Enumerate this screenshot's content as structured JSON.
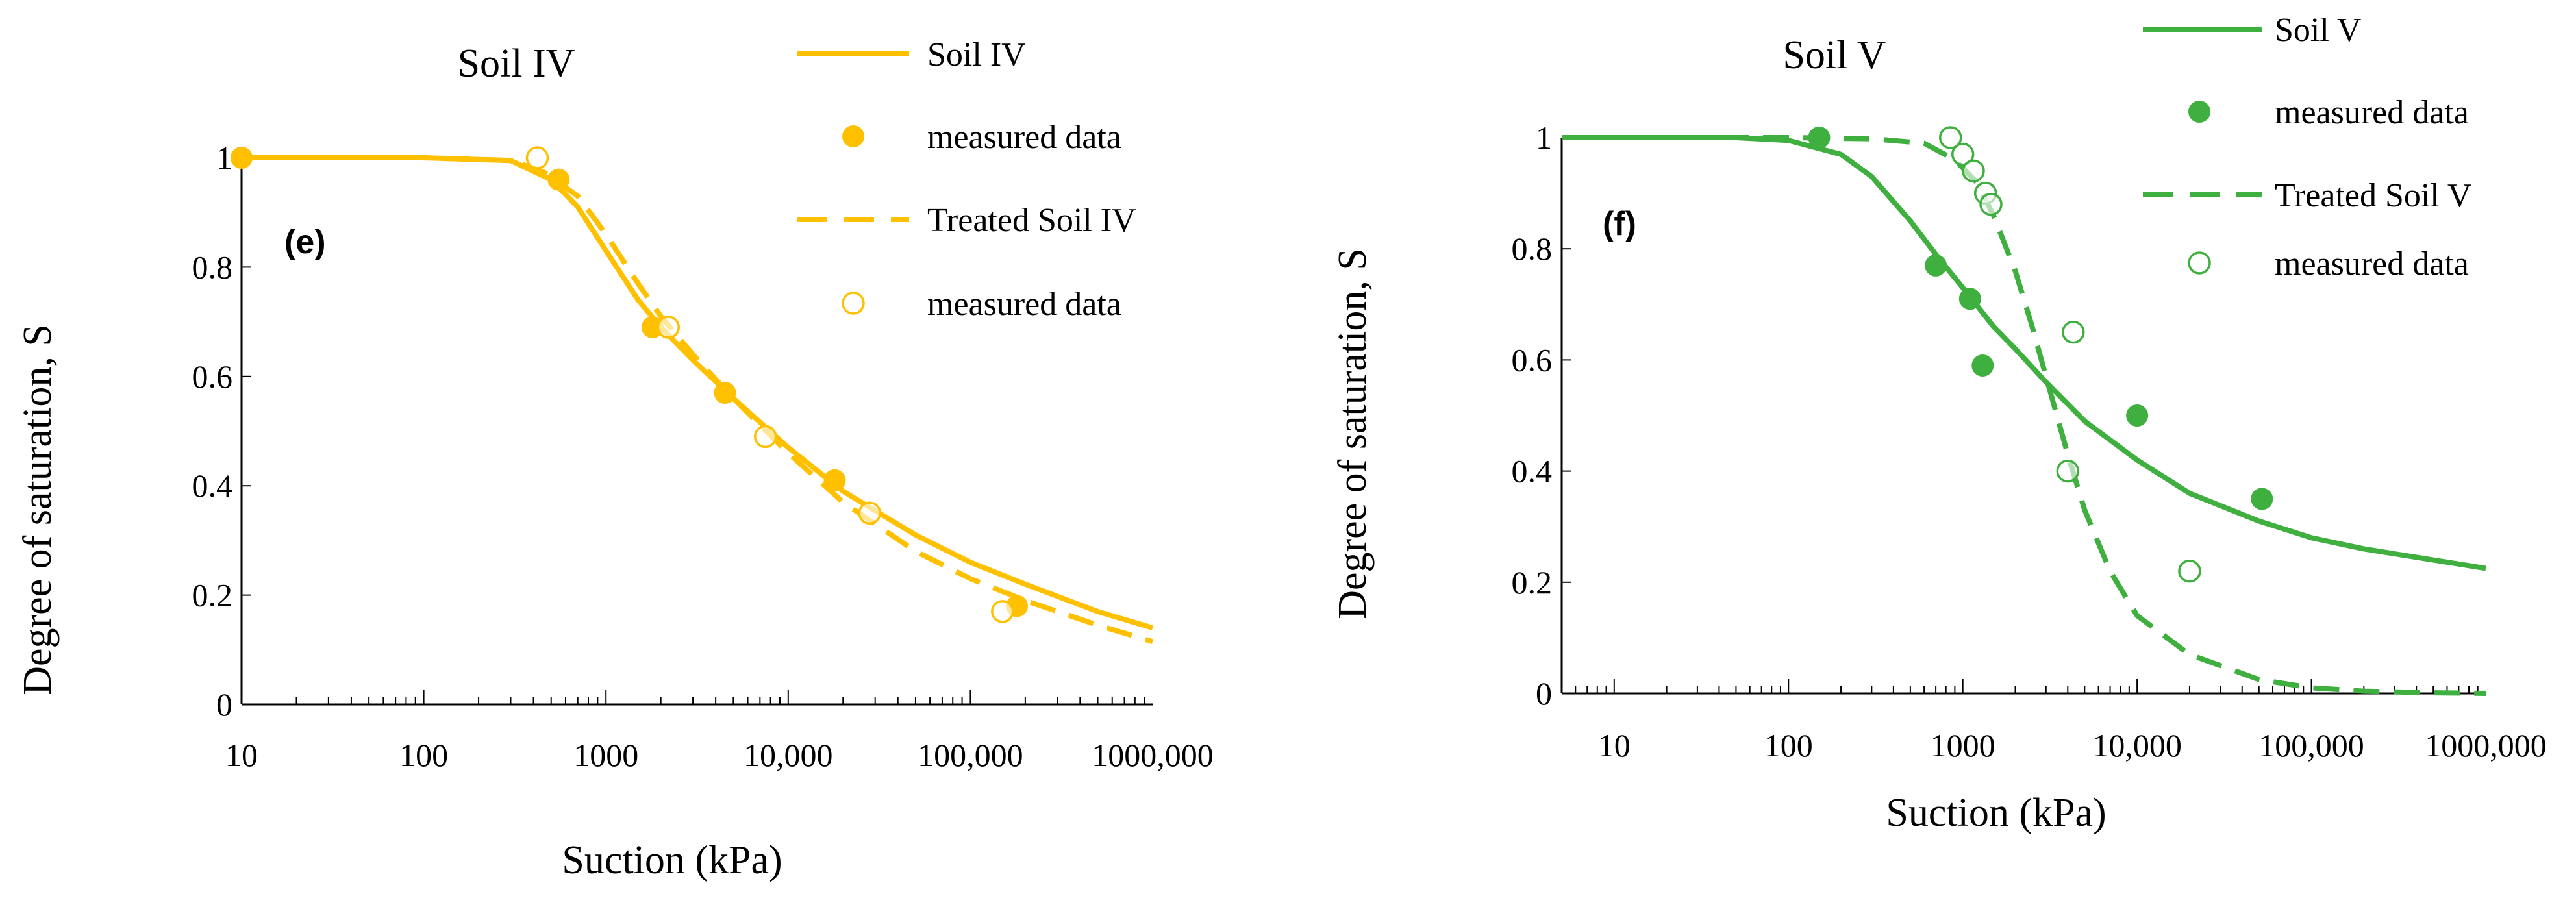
{
  "chart_data": [
    {
      "type": "line",
      "panel_label": "(e)",
      "title": "Soil IV",
      "xlabel": "Suction (kPa)",
      "ylabel": "Degree of saturation, S",
      "x_scale": "log",
      "xlim": [
        10,
        1000000
      ],
      "ylim": [
        0,
        1
      ],
      "x_tick_labels": [
        "10",
        "100",
        "1000",
        "10,000",
        "100,000",
        "1000,000"
      ],
      "x_tick_values": [
        10,
        100,
        1000,
        10000,
        100000,
        1000000
      ],
      "y_tick_labels": [
        "0",
        "0.2",
        "0.4",
        "0.6",
        "0.8",
        "1"
      ],
      "y_tick_values": [
        0,
        0.2,
        0.4,
        0.6,
        0.8,
        1
      ],
      "color": "#FFC000",
      "legend": [
        "Soil IV",
        "measured data",
        "Treated Soil IV",
        "measured data"
      ],
      "series": [
        {
          "name": "Soil IV",
          "style": "solid-line",
          "x": [
            10,
            100,
            300,
            500,
            700,
            1000,
            1500,
            2000,
            3000,
            5000,
            10000,
            20000,
            50000,
            100000,
            200000,
            500000,
            1000000
          ],
          "y": [
            1.0,
            1.0,
            0.995,
            0.96,
            0.91,
            0.83,
            0.74,
            0.69,
            0.63,
            0.56,
            0.47,
            0.39,
            0.31,
            0.26,
            0.22,
            0.17,
            0.14
          ]
        },
        {
          "name": "measured data",
          "style": "filled-marker",
          "x": [
            10,
            550,
            1800,
            4500,
            18000,
            180000
          ],
          "y": [
            1.0,
            0.96,
            0.69,
            0.57,
            0.41,
            0.18
          ]
        },
        {
          "name": "Treated Soil IV",
          "style": "dashed-line",
          "x": [
            10,
            100,
            300,
            450,
            700,
            1000,
            1500,
            2000,
            3000,
            5000,
            10000,
            20000,
            50000,
            100000,
            200000,
            500000,
            1000000
          ],
          "y": [
            1.0,
            1.0,
            0.995,
            0.975,
            0.93,
            0.86,
            0.77,
            0.71,
            0.64,
            0.56,
            0.46,
            0.37,
            0.28,
            0.23,
            0.19,
            0.145,
            0.115
          ]
        },
        {
          "name": "measured data",
          "style": "open-marker",
          "x": [
            420,
            2200,
            7500,
            28000,
            150000
          ],
          "y": [
            1.0,
            0.69,
            0.49,
            0.35,
            0.17
          ]
        }
      ]
    },
    {
      "type": "line",
      "panel_label": "(f)",
      "title": "Soil V",
      "xlabel": "Suction (kPa)",
      "ylabel": "Degree of saturation, S",
      "x_scale": "log",
      "xlim": [
        5,
        1000000
      ],
      "ylim": [
        0,
        1
      ],
      "x_tick_labels": [
        "10",
        "100",
        "1000",
        "10,000",
        "100,000",
        "1000,000"
      ],
      "x_tick_values": [
        10,
        100,
        1000,
        10000,
        100000,
        1000000
      ],
      "y_tick_labels": [
        "0",
        "0.2",
        "0.4",
        "0.6",
        "0.8",
        "1"
      ],
      "y_tick_values": [
        0,
        0.2,
        0.4,
        0.6,
        0.8,
        1
      ],
      "color": "#3FAF3F",
      "legend": [
        "Soil V",
        "measured data",
        "Treated Soil V",
        "measured data"
      ],
      "series": [
        {
          "name": "Soil V",
          "style": "solid-line",
          "x": [
            5,
            50,
            100,
            200,
            300,
            500,
            700,
            1000,
            1500,
            2000,
            3000,
            5000,
            10000,
            20000,
            50000,
            100000,
            200000,
            500000,
            1000000
          ],
          "y": [
            1.0,
            1.0,
            0.995,
            0.97,
            0.93,
            0.85,
            0.79,
            0.73,
            0.66,
            0.62,
            0.56,
            0.49,
            0.42,
            0.36,
            0.31,
            0.28,
            0.26,
            0.24,
            0.225
          ]
        },
        {
          "name": "measured data",
          "style": "filled-marker",
          "x": [
            150,
            700,
            1100,
            1300,
            10000,
            52000
          ],
          "y": [
            1.0,
            0.77,
            0.71,
            0.59,
            0.5,
            0.35
          ]
        },
        {
          "name": "Treated Soil V",
          "style": "dashed-line",
          "x": [
            5,
            100,
            300,
            600,
            900,
            1200,
            1500,
            2000,
            2500,
            3000,
            4000,
            5000,
            7000,
            10000,
            20000,
            50000,
            100000,
            200000,
            500000,
            1000000
          ],
          "y": [
            1.0,
            1.0,
            0.998,
            0.99,
            0.96,
            0.92,
            0.86,
            0.76,
            0.66,
            0.57,
            0.43,
            0.33,
            0.22,
            0.14,
            0.07,
            0.025,
            0.01,
            0.004,
            0.001,
            0.0
          ]
        },
        {
          "name": "measured data",
          "style": "open-marker",
          "x": [
            850,
            1000,
            1150,
            1350,
            1450,
            4300,
            4000,
            20000
          ],
          "y": [
            1.0,
            0.97,
            0.94,
            0.9,
            0.88,
            0.65,
            0.4,
            0.22
          ]
        }
      ]
    }
  ]
}
